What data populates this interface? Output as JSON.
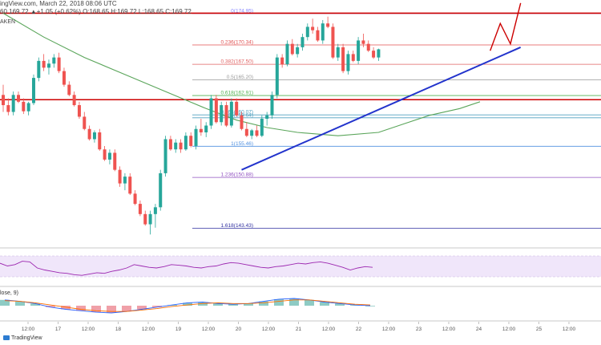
{
  "header": {
    "line": "ingView.com, March 22, 2018 08:06 UTC",
    "ohlc": "60  169.72  ▲+1.05 (+0.62%)  O:168.65  H:169.72  L:168.65  C:169.72",
    "exchange": "AKEN"
  },
  "indicator": {
    "macd_label": "lose, 9)"
  },
  "footer": {
    "logo_text": "TradingView"
  },
  "colors": {
    "bull": "#26a69a",
    "bear": "#ef5350",
    "sma": "#5aa55a",
    "trendline": "#2233cc",
    "resistance": "#cc0000",
    "rsi_band": "#f0e6fa",
    "rsi_line": "#9c27b0"
  },
  "chart_data": {
    "type": "candlestick",
    "title": "",
    "price_range": [
      141,
      176
    ],
    "time_axis": {
      "labels": [
        "12:00",
        "17",
        "12:00",
        "18",
        "12:00",
        "19",
        "12:00",
        "20",
        "12:00",
        "21",
        "12:00",
        "22",
        "12:00",
        "23",
        "12:00",
        "24",
        "12:00",
        "25",
        "12:00",
        "26"
      ]
    },
    "candles": [
      [
        163.0,
        164.5,
        160.5,
        161.5
      ],
      [
        161.5,
        162.5,
        160.0,
        160.5
      ],
      [
        160.5,
        163.5,
        160.0,
        163.0
      ],
      [
        163.0,
        163.5,
        161.8,
        162.0
      ],
      [
        162.0,
        162.5,
        160.2,
        160.6
      ],
      [
        160.6,
        162.0,
        160.0,
        161.8
      ],
      [
        161.8,
        166.0,
        161.5,
        165.5
      ],
      [
        165.5,
        168.5,
        165.0,
        168.0
      ],
      [
        168.0,
        169.0,
        166.5,
        167.0
      ],
      [
        167.0,
        168.2,
        166.0,
        167.6
      ],
      [
        167.6,
        169.0,
        167.0,
        168.5
      ],
      [
        168.5,
        169.2,
        166.2,
        166.5
      ],
      [
        166.5,
        167.0,
        164.2,
        164.5
      ],
      [
        164.5,
        165.0,
        162.8,
        163.0
      ],
      [
        163.0,
        163.5,
        161.3,
        161.5
      ],
      [
        161.5,
        162.0,
        159.5,
        159.8
      ],
      [
        159.8,
        160.5,
        157.8,
        158.0
      ],
      [
        158.0,
        158.5,
        156.3,
        156.5
      ],
      [
        156.5,
        157.8,
        156.0,
        157.5
      ],
      [
        157.5,
        158.0,
        154.8,
        155.0
      ],
      [
        155.0,
        155.5,
        153.3,
        153.5
      ],
      [
        153.5,
        155.0,
        152.8,
        154.5
      ],
      [
        154.5,
        155.0,
        151.8,
        152.0
      ],
      [
        152.0,
        152.5,
        149.5,
        150.0
      ],
      [
        150.0,
        151.5,
        149.0,
        151.0
      ],
      [
        151.0,
        151.5,
        148.3,
        148.5
      ],
      [
        148.5,
        149.0,
        146.8,
        147.0
      ],
      [
        147.0,
        147.5,
        145.2,
        145.5
      ],
      [
        145.5,
        146.0,
        143.8,
        144.0
      ],
      [
        144.0,
        146.0,
        142.5,
        145.5
      ],
      [
        145.5,
        147.0,
        143.5,
        146.5
      ],
      [
        146.5,
        152.0,
        146.0,
        151.5
      ],
      [
        151.5,
        157.0,
        151.0,
        156.5
      ],
      [
        156.5,
        157.0,
        154.8,
        155.0
      ],
      [
        155.0,
        156.5,
        154.5,
        156.0
      ],
      [
        156.0,
        156.5,
        154.5,
        155.0
      ],
      [
        155.0,
        157.5,
        154.8,
        157.0
      ],
      [
        157.0,
        157.5,
        155.3,
        155.5
      ],
      [
        155.5,
        158.5,
        155.0,
        158.0
      ],
      [
        158.0,
        159.5,
        157.0,
        157.5
      ],
      [
        157.5,
        159.0,
        156.8,
        158.5
      ],
      [
        158.5,
        163.0,
        158.0,
        162.5
      ],
      [
        162.5,
        163.0,
        158.8,
        159.0
      ],
      [
        159.0,
        162.0,
        158.5,
        161.5
      ],
      [
        161.5,
        162.0,
        158.3,
        158.5
      ],
      [
        158.5,
        162.5,
        158.2,
        162.0
      ],
      [
        162.0,
        162.5,
        159.8,
        160.0
      ],
      [
        160.0,
        160.5,
        157.8,
        158.0
      ],
      [
        158.0,
        159.0,
        156.8,
        157.0
      ],
      [
        157.0,
        158.0,
        156.5,
        157.8
      ],
      [
        157.8,
        158.5,
        156.8,
        157.0
      ],
      [
        157.0,
        160.0,
        156.8,
        159.5
      ],
      [
        159.5,
        160.5,
        158.5,
        160.0
      ],
      [
        160.0,
        163.5,
        159.5,
        163.0
      ],
      [
        163.0,
        169.0,
        162.5,
        168.5
      ],
      [
        168.5,
        169.0,
        167.0,
        167.5
      ],
      [
        167.5,
        171.0,
        167.2,
        170.5
      ],
      [
        170.5,
        171.2,
        168.8,
        169.0
      ],
      [
        169.0,
        170.5,
        168.5,
        170.0
      ],
      [
        170.0,
        172.0,
        169.5,
        171.5
      ],
      [
        171.5,
        173.5,
        171.0,
        173.0
      ],
      [
        173.0,
        174.2,
        172.0,
        172.5
      ],
      [
        172.5,
        173.0,
        170.8,
        171.0
      ],
      [
        171.0,
        174.0,
        170.5,
        173.5
      ],
      [
        173.5,
        174.5,
        172.8,
        173.0
      ],
      [
        173.0,
        173.5,
        168.3,
        168.5
      ],
      [
        168.5,
        170.5,
        168.0,
        170.0
      ],
      [
        170.0,
        170.5,
        166.2,
        166.5
      ],
      [
        166.5,
        169.5,
        166.0,
        169.0
      ],
      [
        169.0,
        169.5,
        167.8,
        168.0
      ],
      [
        168.0,
        171.5,
        167.5,
        171.0
      ],
      [
        171.0,
        172.0,
        170.0,
        170.5
      ],
      [
        170.5,
        171.0,
        169.3,
        169.5
      ],
      [
        169.5,
        170.0,
        168.3,
        168.5
      ],
      [
        168.5,
        169.8,
        168.0,
        169.7
      ]
    ],
    "sma": [
      [
        0,
        175.0
      ],
      [
        8,
        171.5
      ],
      [
        16,
        168.5
      ],
      [
        24,
        166.0
      ],
      [
        32,
        163.5
      ],
      [
        40,
        161.0
      ],
      [
        46,
        159.3
      ],
      [
        52,
        158.2
      ],
      [
        58,
        157.5
      ],
      [
        66,
        157.0
      ],
      [
        74,
        157.5
      ],
      [
        78,
        158.5
      ],
      [
        84,
        160.0
      ],
      [
        90,
        161.0
      ],
      [
        94,
        162.0
      ]
    ],
    "fib_levels": [
      {
        "ratio": "0",
        "price": 174.95,
        "label": "0(174.95)"
      },
      {
        "ratio": "0.236",
        "price": 170.34,
        "label": "0.236(170.34)"
      },
      {
        "ratio": "0.382",
        "price": 167.5,
        "label": "0.382(167.50)"
      },
      {
        "ratio": "0.5",
        "price": 165.2,
        "label": "0.5(165.20)"
      },
      {
        "ratio": "0.618",
        "price": 162.91,
        "label": "0.618(162.91)"
      },
      {
        "ratio": "0.764",
        "price": 160.07,
        "label": "0.764(160.07)"
      },
      {
        "ratio": "0.786",
        "price": 159.64,
        "label": "0.786(159.64)"
      },
      {
        "ratio": "1",
        "price": 155.46,
        "label": "1(155.46)"
      },
      {
        "ratio": "1.236",
        "price": 150.88,
        "label": "1.236(150.88)"
      },
      {
        "ratio": "1.618",
        "price": 143.43,
        "label": "1.618(143.43)"
      }
    ],
    "resistance_lines": [
      175.0,
      162.3
    ],
    "trendline": [
      [
        47,
        152.0
      ],
      [
        102,
        170.0
      ]
    ],
    "projection": [
      [
        96,
        169.5
      ],
      [
        98,
        173.5
      ],
      [
        100,
        170.5
      ],
      [
        102,
        176.5
      ]
    ],
    "rsi": [
      62,
      58,
      60,
      65,
      64,
      55,
      52,
      50,
      48,
      47,
      45,
      44,
      46,
      48,
      47,
      50,
      52,
      55,
      60,
      58,
      56,
      55,
      57,
      60,
      59,
      58,
      56,
      55,
      57,
      58,
      61,
      63,
      62,
      60,
      58,
      56,
      55,
      57,
      58,
      60,
      62,
      61,
      63,
      64,
      62,
      59,
      56,
      52,
      55,
      57,
      56
    ],
    "macd": [
      0.8,
      0.6,
      0.3,
      -0.2,
      -0.5,
      -0.7,
      -0.9,
      -1.0,
      -0.8,
      -0.5,
      -0.2,
      0.1,
      0.4,
      0.5,
      0.3,
      0.2,
      0.3,
      0.6,
      0.9,
      1.0,
      0.8,
      0.5,
      0.3,
      0.1,
      0.0
    ],
    "signal": [
      0.7,
      0.6,
      0.4,
      0.1,
      -0.2,
      -0.5,
      -0.7,
      -0.8,
      -0.8,
      -0.6,
      -0.4,
      -0.1,
      0.1,
      0.3,
      0.4,
      0.3,
      0.3,
      0.4,
      0.6,
      0.8,
      0.8,
      0.6,
      0.4,
      0.2,
      0.1
    ]
  }
}
